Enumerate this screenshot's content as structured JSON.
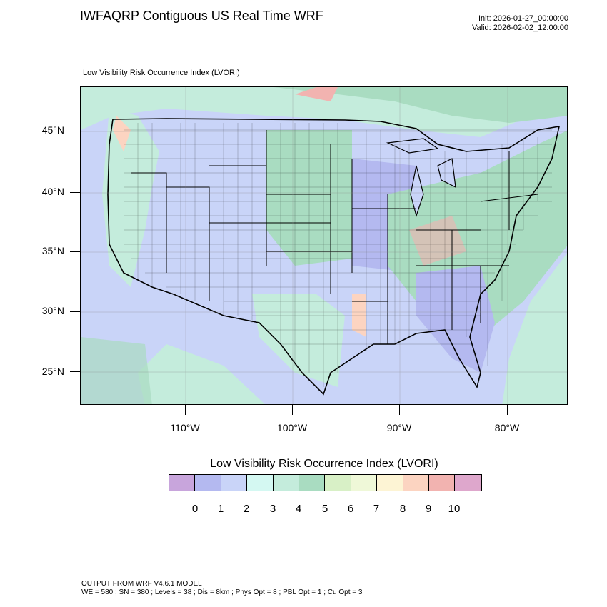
{
  "header": {
    "title": "IWFAQRP Contiguous US Real Time WRF",
    "init": "Init: 2026-01-27_00:00:00",
    "valid": "Valid: 2026-02-02_12:00:00"
  },
  "map": {
    "subtitle": "Low Visibility Risk Occurrence Index   (LVORI)",
    "lat_labels": [
      "45°N",
      "40°N",
      "35°N",
      "30°N",
      "25°N"
    ],
    "lon_labels": [
      "110°W",
      "100°W",
      "90°W",
      "80°W"
    ]
  },
  "legend": {
    "title": "Low Visibility Risk Occurrence Index  (LVORI)",
    "labels": [
      "0",
      "1",
      "2",
      "3",
      "4",
      "5",
      "6",
      "7",
      "8",
      "9",
      "10"
    ],
    "colors": [
      "#c8a5dc",
      "#b4b9f0",
      "#c9d4f8",
      "#d4f8f2",
      "#c4ecdc",
      "#a9dcc1",
      "#d8f0c6",
      "#eff8d8",
      "#fdf4d4",
      "#fcd4c1",
      "#f2b3b0",
      "#dea7cc"
    ]
  },
  "footer": {
    "line1": "OUTPUT FROM WRF V4.6.1 MODEL",
    "line2": "WE = 580 ; SN = 380 ; Levels = 38 ; Dis = 8km ; Phys Opt = 8 ; PBL Opt = 1 ; Cu Opt = 3"
  }
}
